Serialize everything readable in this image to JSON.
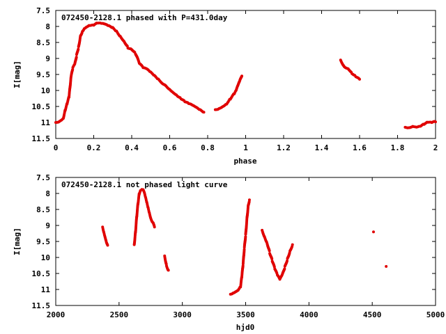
{
  "chart_data": [
    {
      "type": "scatter",
      "title": "072450-2128.1 phased with P=431.0day",
      "xlabel": "phase",
      "ylabel": "I[mag]",
      "xlim": [
        0,
        2
      ],
      "ylim": [
        11.5,
        7.5
      ],
      "y_inverted": true,
      "x_ticks": [
        "0",
        "0.2",
        "0.4",
        "0.6",
        "0.8",
        "1",
        "1.2",
        "1.4",
        "1.6",
        "1.8",
        "2"
      ],
      "y_ticks": [
        "7.5",
        "8",
        "8.5",
        "9",
        "9.5",
        "10",
        "10.5",
        "11",
        "11.5"
      ],
      "x_tick_values": [
        0,
        0.2,
        0.4,
        0.6,
        0.8,
        1.0,
        1.2,
        1.4,
        1.6,
        1.8,
        2.0
      ],
      "y_tick_values": [
        7.5,
        8,
        8.5,
        9,
        9.5,
        10,
        10.5,
        11,
        11.5
      ],
      "grid": false,
      "marker_color": "#e00000",
      "segments": [
        {
          "x": [
            0.0,
            0.02,
            0.04,
            0.05,
            0.06,
            0.07,
            0.08,
            0.09,
            0.1,
            0.11,
            0.12,
            0.13,
            0.14,
            0.15,
            0.16,
            0.18,
            0.2,
            0.22,
            0.24,
            0.26,
            0.28,
            0.3,
            0.32,
            0.34,
            0.36,
            0.38,
            0.4,
            0.42,
            0.44,
            0.46,
            0.48,
            0.5,
            0.52,
            0.54,
            0.58,
            0.6,
            0.62,
            0.64,
            0.66,
            0.68,
            0.7,
            0.72,
            0.74,
            0.76,
            0.78
          ],
          "y": [
            11.0,
            10.95,
            10.85,
            10.6,
            10.4,
            10.2,
            9.6,
            9.3,
            9.2,
            8.9,
            8.65,
            8.3,
            8.15,
            8.05,
            8.0,
            7.95,
            7.95,
            7.9,
            7.92,
            7.95,
            8.0,
            8.05,
            8.15,
            8.3,
            8.45,
            8.65,
            8.7,
            8.85,
            9.15,
            9.3,
            9.35,
            9.45,
            9.55,
            9.65,
            9.85,
            9.95,
            10.05,
            10.15,
            10.25,
            10.35,
            10.42,
            10.48,
            10.55,
            10.62,
            10.68
          ]
        },
        {
          "x": [
            0.84,
            0.86,
            0.88,
            0.9,
            0.92,
            0.94,
            0.95,
            0.96,
            0.97,
            0.98
          ],
          "y": [
            10.6,
            10.55,
            10.48,
            10.4,
            10.25,
            10.1,
            10.0,
            9.85,
            9.7,
            9.55
          ]
        },
        {
          "x": [
            1.5,
            1.52,
            1.54,
            1.56,
            1.58,
            1.6
          ],
          "y": [
            9.05,
            9.25,
            9.3,
            9.45,
            9.55,
            9.65
          ]
        },
        {
          "x": [
            1.84,
            1.86,
            1.88,
            1.9,
            1.92,
            1.94,
            1.96,
            1.98,
            2.0
          ],
          "y": [
            11.15,
            11.15,
            11.1,
            11.12,
            11.1,
            11.05,
            11.0,
            11.02,
            10.98
          ]
        }
      ]
    },
    {
      "type": "scatter",
      "title": "072450-2128.1 not phased light curve",
      "xlabel": "hjd0",
      "ylabel": "I[mag]",
      "xlim": [
        2000,
        5000
      ],
      "ylim": [
        11.5,
        7.5
      ],
      "y_inverted": true,
      "x_ticks": [
        "2000",
        "2500",
        "3000",
        "3500",
        "4000",
        "4500",
        "5000"
      ],
      "y_ticks": [
        "7.5",
        "8",
        "8.5",
        "9",
        "9.5",
        "10",
        "10.5",
        "11",
        "11.5"
      ],
      "x_tick_values": [
        2000,
        2500,
        3000,
        3500,
        4000,
        4500,
        5000
      ],
      "y_tick_values": [
        7.5,
        8,
        8.5,
        9,
        9.5,
        10,
        10.5,
        11,
        11.5
      ],
      "grid": false,
      "marker_color": "#e00000",
      "segments": [
        {
          "x": [
            2370,
            2380,
            2390,
            2400,
            2410
          ],
          "y": [
            9.05,
            9.2,
            9.35,
            9.5,
            9.62
          ]
        },
        {
          "x": [
            2620,
            2630,
            2640,
            2650,
            2660,
            2670,
            2680,
            2690,
            2700,
            2710,
            2720,
            2730,
            2740,
            2750,
            2760,
            2770,
            2780
          ],
          "y": [
            9.6,
            9.2,
            8.7,
            8.3,
            8.0,
            7.9,
            7.88,
            7.9,
            8.0,
            8.15,
            8.3,
            8.45,
            8.6,
            8.75,
            8.85,
            8.9,
            9.05
          ]
        },
        {
          "x": [
            2860,
            2875,
            2890
          ],
          "y": [
            9.95,
            10.25,
            10.4
          ]
        },
        {
          "x": [
            3380,
            3400,
            3420,
            3440,
            3460,
            3470,
            3480,
            3490,
            3500,
            3510,
            3520,
            3530
          ],
          "y": [
            11.15,
            11.1,
            11.05,
            11.0,
            10.9,
            10.6,
            10.2,
            9.7,
            9.3,
            8.8,
            8.4,
            8.2
          ]
        },
        {
          "x": [
            3630,
            3650,
            3670,
            3690,
            3710,
            3730,
            3750,
            3770,
            3790,
            3810,
            3830,
            3850,
            3870
          ],
          "y": [
            9.15,
            9.35,
            9.55,
            9.85,
            10.1,
            10.35,
            10.55,
            10.7,
            10.55,
            10.3,
            10.05,
            9.8,
            9.6
          ]
        },
        {
          "x": [
            4510
          ],
          "y": [
            9.2
          ]
        },
        {
          "x": [
            4610
          ],
          "y": [
            10.28
          ]
        }
      ]
    }
  ]
}
